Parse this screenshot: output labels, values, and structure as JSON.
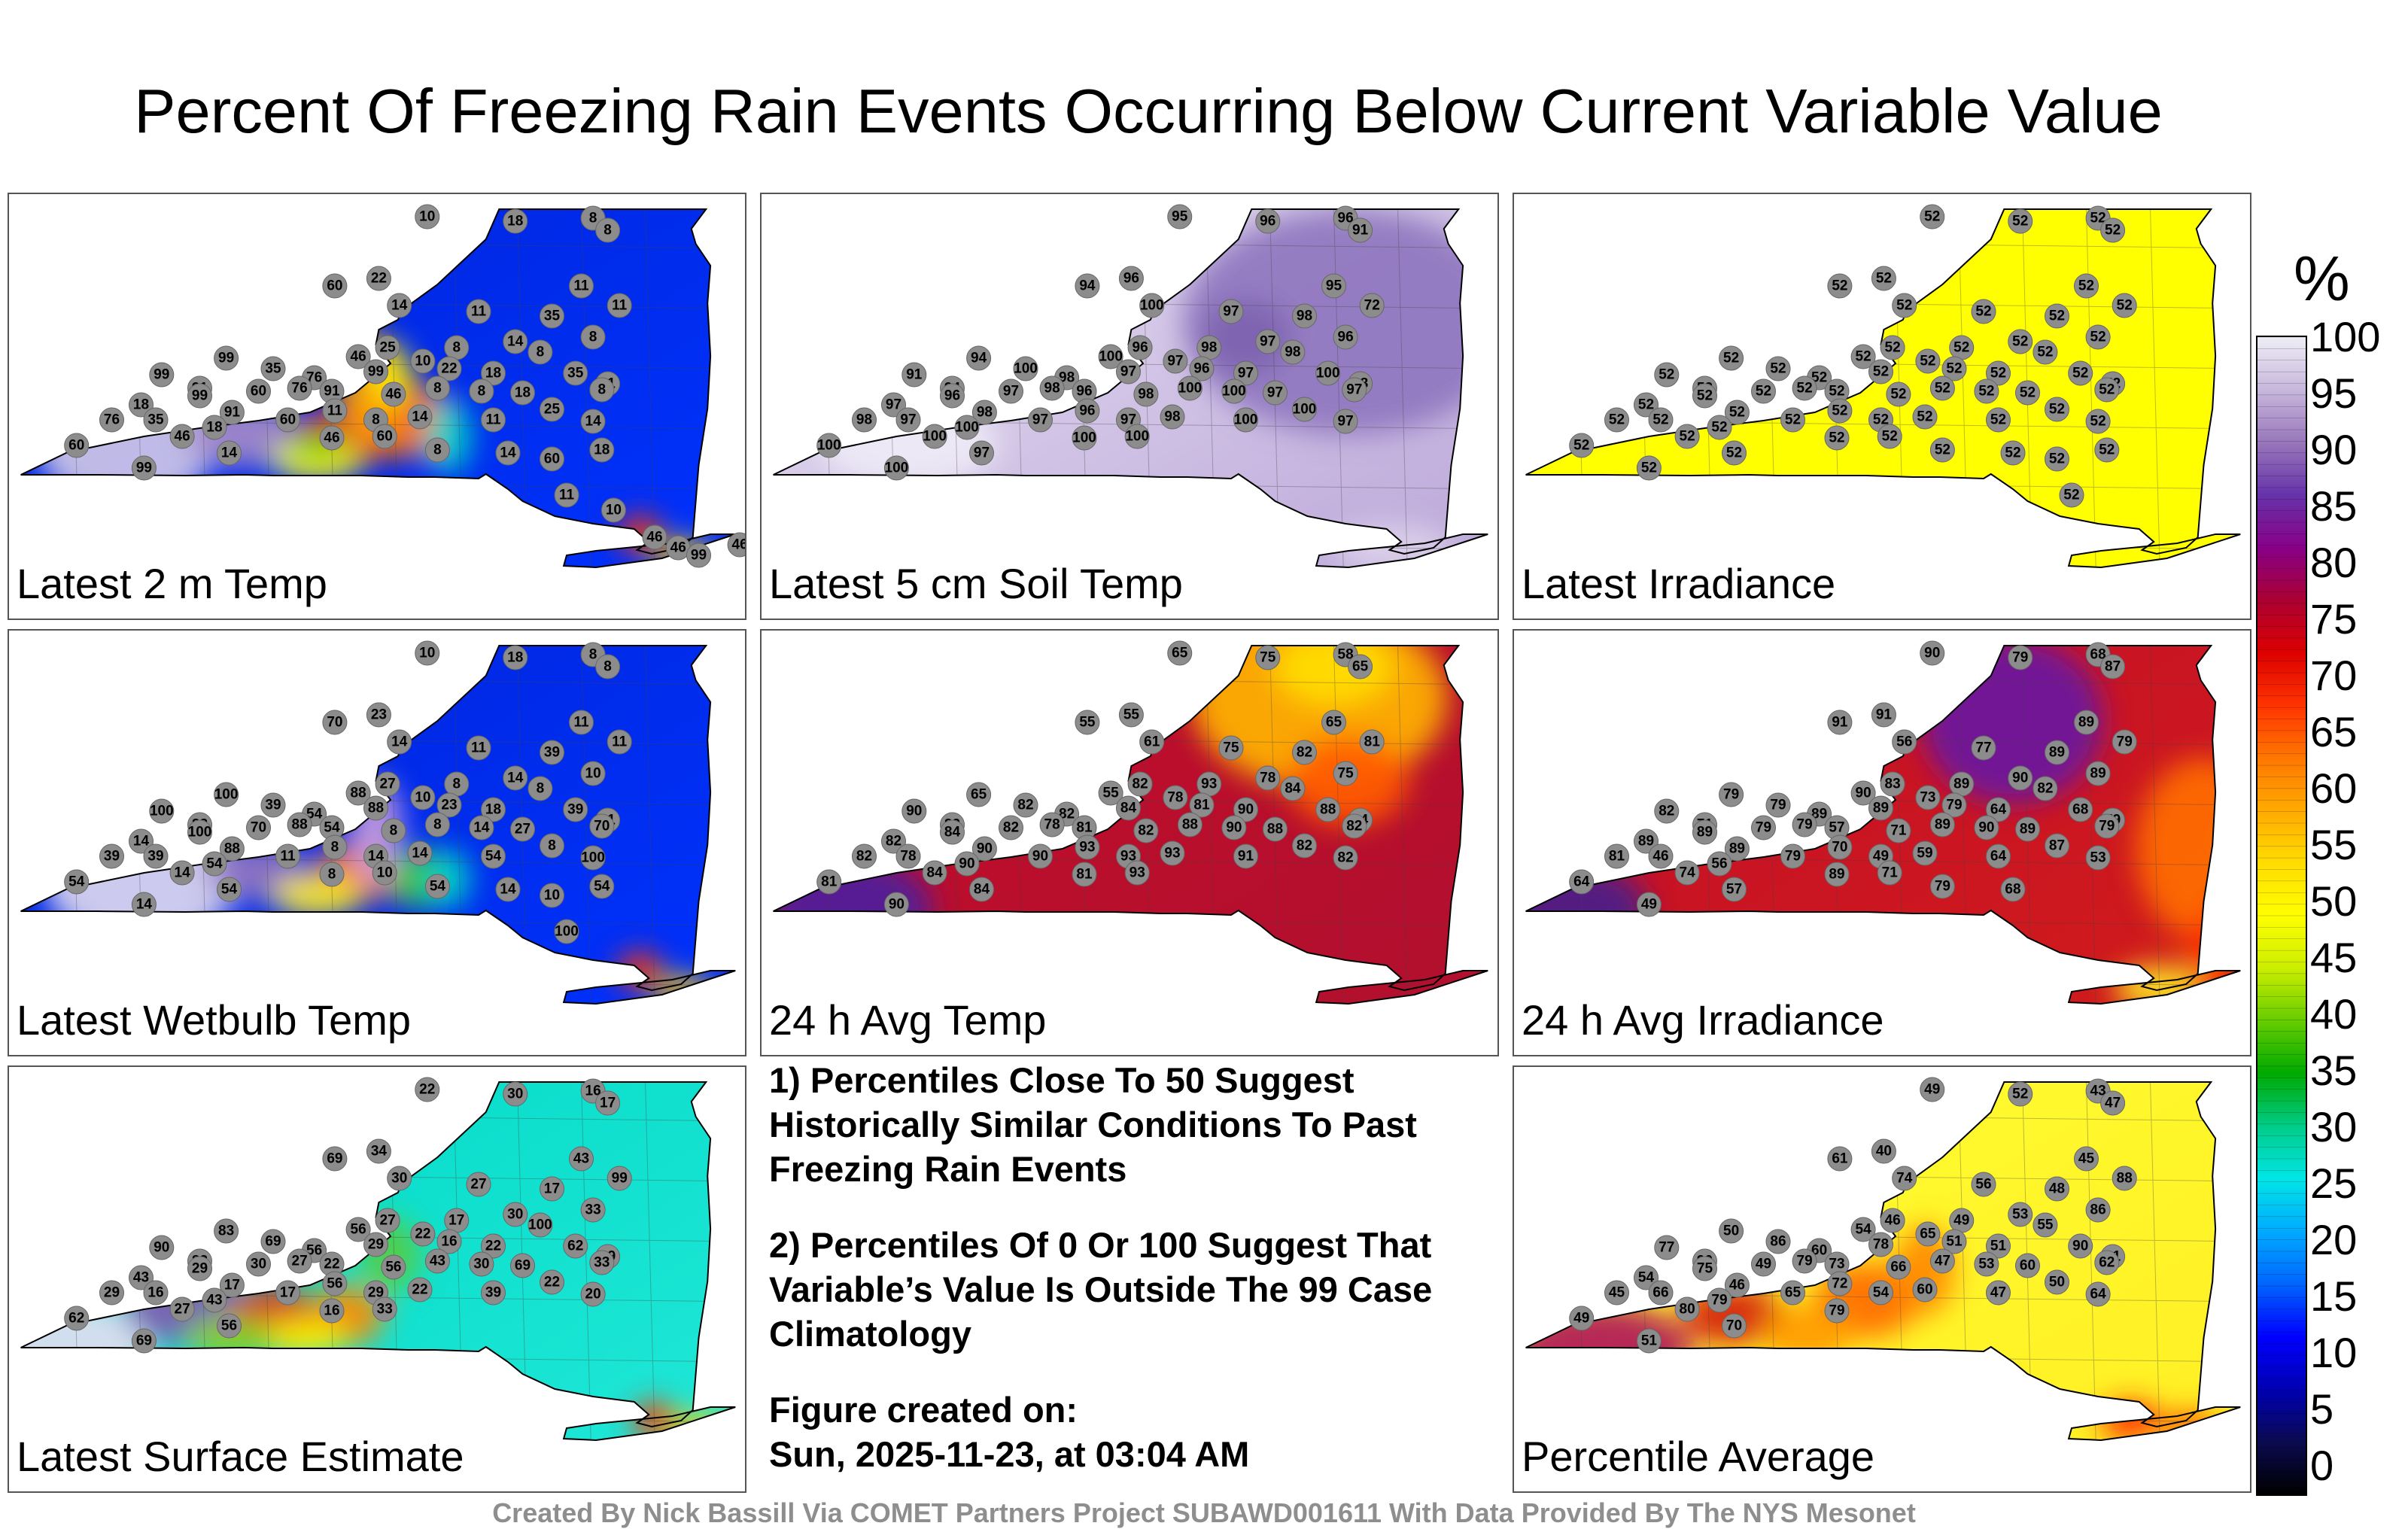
{
  "title": "Percent Of Freezing Rain Events Occurring Below Current Variable Value",
  "panels": [
    {
      "label": "Latest 2 m Temp",
      "palette": "2m",
      "values": [
        "10",
        "18",
        "8",
        "8",
        "60",
        "22",
        "14",
        "11",
        "35",
        "11",
        "99",
        "46",
        "25",
        "8",
        "14",
        "8",
        "11",
        "99",
        "91",
        "35",
        "76",
        "99",
        "10",
        "22",
        "18",
        "8",
        "35",
        "11",
        "18",
        "99",
        "91",
        "60",
        "76",
        "91",
        "46",
        "8",
        "8",
        "18",
        "25",
        "8",
        "76",
        "35",
        "46",
        "18",
        "60",
        "11",
        "8",
        "14",
        "11",
        "14",
        "60",
        "99",
        "14",
        "46",
        "60",
        "8",
        "14",
        "60",
        "18",
        "11",
        "10",
        "46",
        "46",
        "99",
        "46"
      ]
    },
    {
      "label": "Latest 5 cm Soil Temp",
      "palette": "soil",
      "values": [
        "95",
        "96",
        "96",
        "91",
        "94",
        "96",
        "100",
        "97",
        "98",
        "95",
        "94",
        "100",
        "96",
        "98",
        "97",
        "96",
        "72",
        "91",
        "94",
        "100",
        "98",
        "97",
        "97",
        "96",
        "97",
        "98",
        "100",
        "98",
        "97",
        "96",
        "98",
        "97",
        "98",
        "96",
        "98",
        "100",
        "100",
        "97",
        "100",
        "97",
        "98",
        "97",
        "100",
        "100",
        "97",
        "96",
        "97",
        "98",
        "100",
        "97",
        "100",
        "100",
        "97",
        "100",
        "100"
      ]
    },
    {
      "label": "Latest Irradiance",
      "palette": "irr",
      "values": [
        "52",
        "52",
        "52",
        "52",
        "52",
        "52",
        "52",
        "52",
        "52",
        "52",
        "52",
        "52",
        "52",
        "52",
        "52",
        "52",
        "52",
        "52",
        "52",
        "52",
        "52",
        "52",
        "52",
        "52",
        "52",
        "52",
        "52",
        "52",
        "52",
        "52",
        "52",
        "52",
        "52",
        "52",
        "52",
        "52",
        "52",
        "52",
        "52",
        "52",
        "52",
        "52",
        "52",
        "52",
        "52",
        "52",
        "52",
        "52",
        "52",
        "52",
        "52",
        "52",
        "52",
        "52",
        "52",
        "52",
        "52",
        "52",
        "52",
        "52"
      ]
    },
    {
      "label": "Latest Wetbulb Temp",
      "palette": "wb",
      "values": [
        "10",
        "18",
        "8",
        "8",
        "70",
        "23",
        "14",
        "11",
        "39",
        "11",
        "100",
        "88",
        "27",
        "8",
        "14",
        "10",
        "11",
        "100",
        "88",
        "39",
        "54",
        "88",
        "10",
        "23",
        "18",
        "8",
        "39",
        "11",
        "14",
        "100",
        "88",
        "70",
        "88",
        "54",
        "8",
        "8",
        "14",
        "27",
        "8",
        "70",
        "39",
        "39",
        "14",
        "54",
        "11",
        "8",
        "14",
        "14",
        "54",
        "100",
        "54",
        "14",
        "54",
        "8",
        "10",
        "54",
        "14",
        "10",
        "54",
        "100"
      ]
    },
    {
      "label": "24 h Avg Temp",
      "palette": "avgt",
      "values": [
        "65",
        "75",
        "58",
        "65",
        "55",
        "55",
        "61",
        "75",
        "82",
        "65",
        "65",
        "55",
        "82",
        "93",
        "78",
        "75",
        "81",
        "90",
        "82",
        "82",
        "82",
        "84",
        "78",
        "81",
        "90",
        "84",
        "88",
        "84",
        "82",
        "84",
        "90",
        "82",
        "78",
        "81",
        "82",
        "88",
        "90",
        "88",
        "82",
        "82",
        "82",
        "78",
        "84",
        "90",
        "90",
        "93",
        "93",
        "93",
        "91",
        "82",
        "81",
        "90",
        "84",
        "81",
        "93"
      ]
    },
    {
      "label": "24 h Avg Irradiance",
      "palette": "avgi",
      "values": [
        "90",
        "79",
        "68",
        "87",
        "91",
        "91",
        "56",
        "77",
        "89",
        "89",
        "79",
        "90",
        "83",
        "89",
        "90",
        "89",
        "79",
        "82",
        "71",
        "79",
        "89",
        "89",
        "73",
        "79",
        "64",
        "82",
        "68",
        "79",
        "89",
        "89",
        "89",
        "79",
        "79",
        "57",
        "71",
        "89",
        "90",
        "89",
        "87",
        "79",
        "81",
        "46",
        "74",
        "56",
        "79",
        "70",
        "49",
        "59",
        "64",
        "53",
        "64",
        "49",
        "57",
        "89",
        "71",
        "79",
        "68"
      ]
    },
    {
      "label": "Latest Surface Estimate",
      "palette": "sfc",
      "values": [
        "22",
        "30",
        "16",
        "17",
        "69",
        "34",
        "30",
        "27",
        "17",
        "43",
        "83",
        "56",
        "27",
        "17",
        "30",
        "33",
        "99",
        "90",
        "83",
        "69",
        "56",
        "29",
        "22",
        "16",
        "22",
        "100",
        "62",
        "39",
        "43",
        "29",
        "17",
        "30",
        "27",
        "22",
        "56",
        "43",
        "30",
        "69",
        "22",
        "33",
        "29",
        "16",
        "27",
        "43",
        "17",
        "56",
        "29",
        "22",
        "39",
        "20",
        "62",
        "69",
        "56",
        "16",
        "33"
      ]
    },
    {
      "label": "Percentile Average",
      "palette": "avg",
      "values": [
        "49",
        "52",
        "43",
        "47",
        "61",
        "40",
        "74",
        "56",
        "48",
        "45",
        "50",
        "54",
        "46",
        "49",
        "53",
        "86",
        "88",
        "77",
        "90",
        "86",
        "60",
        "78",
        "65",
        "51",
        "51",
        "55",
        "90",
        "81",
        "54",
        "75",
        "46",
        "49",
        "79",
        "73",
        "66",
        "47",
        "53",
        "60",
        "50",
        "62",
        "45",
        "66",
        "80",
        "79",
        "65",
        "72",
        "54",
        "60",
        "47",
        "64",
        "49",
        "51",
        "70",
        "79"
      ]
    }
  ],
  "notes": [
    "1) Percentiles Close To 50 Suggest Historically Similar Conditions To Past Freezing Rain Events",
    "2) Percentiles Of 0 Or 100 Suggest That Variable’s Value Is Outside The 99 Case Climatology",
    "Figure created on:",
    "Sun, 2025-11-23, at 03:04 AM"
  ],
  "colorbar": {
    "unit": "%",
    "ticks": [
      "100",
      "95",
      "90",
      "85",
      "80",
      "75",
      "70",
      "65",
      "60",
      "55",
      "50",
      "45",
      "40",
      "35",
      "30",
      "25",
      "20",
      "15",
      "10",
      "5",
      "0"
    ],
    "stops": [
      "#000000",
      "#0a0a50",
      "#0000b4",
      "#0000ff",
      "#0066ff",
      "#00aaff",
      "#00e6e6",
      "#00cc88",
      "#00aa00",
      "#66cc00",
      "#ccee00",
      "#ffff00",
      "#ffdd00",
      "#ffaa00",
      "#ff7700",
      "#ff3300",
      "#dd0000",
      "#aa0033",
      "#880088",
      "#6633aa",
      "#9977bb",
      "#c8b8dc",
      "#eeeef6"
    ]
  },
  "footer": "Created By Nick Bassill Via COMET Partners Project SUBAWD001611 With Data Provided By The NYS Mesonet"
}
